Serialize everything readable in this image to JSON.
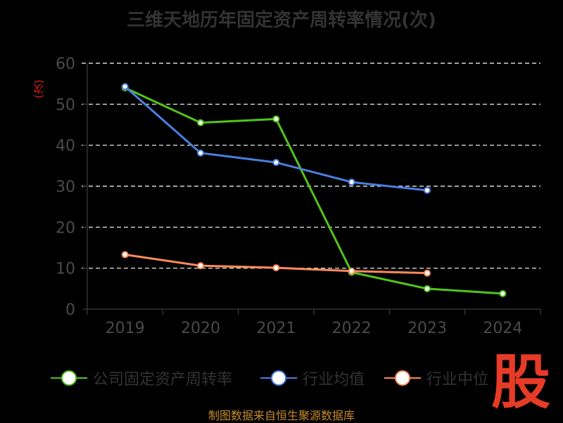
{
  "chart_data": {
    "type": "line",
    "title": "三维天地历年固定资产周转率情况(次)",
    "ylabel": "(次)",
    "categories": [
      "2019",
      "2020",
      "2021",
      "2022",
      "2023",
      "2024"
    ],
    "ylim": [
      0,
      60
    ],
    "yticks": [
      0,
      10,
      20,
      30,
      40,
      50,
      60
    ],
    "grid": true,
    "legend_position": "bottom",
    "series": [
      {
        "name": "公司固定资产周转率",
        "color": "#52c41a",
        "values": [
          54,
          45.5,
          46.4,
          9,
          5,
          3.8
        ]
      },
      {
        "name": "行业均值",
        "color": "#4b7fe0",
        "values": [
          54.3,
          38.1,
          35.8,
          31,
          29,
          null
        ]
      },
      {
        "name": "行业中位数",
        "color": "#ff8a5b",
        "values": [
          13.3,
          10.6,
          10.1,
          9.3,
          8.8,
          null
        ]
      }
    ]
  },
  "legend_labels": [
    "公司固定资产周转率",
    "行业均值",
    "行业中位"
  ],
  "footer": "制图数据来自恒生聚源数据库",
  "logo_text": "股"
}
